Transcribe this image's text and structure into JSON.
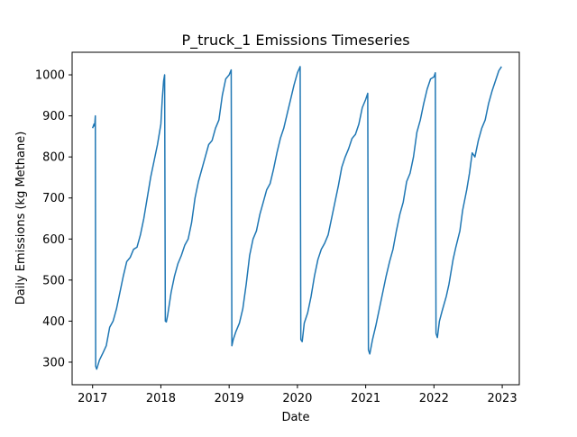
{
  "chart_data": {
    "type": "line",
    "title": "P_truck_1 Emissions Timeseries",
    "xlabel": "Date",
    "ylabel": "Daily Emissions (kg Methane)",
    "xlim": [
      2016.7,
      2023.25
    ],
    "ylim": [
      245,
      1055
    ],
    "x_ticks": [
      2017,
      2018,
      2019,
      2020,
      2021,
      2022,
      2023
    ],
    "x_tick_labels": [
      "2017",
      "2018",
      "2019",
      "2020",
      "2021",
      "2022",
      "2023"
    ],
    "y_ticks": [
      300,
      400,
      500,
      600,
      700,
      800,
      900,
      1000
    ],
    "y_tick_labels": [
      "300",
      "400",
      "500",
      "600",
      "700",
      "800",
      "900",
      "1000"
    ],
    "grid": false,
    "series": [
      {
        "name": "P_truck_1",
        "color": "#1f77b4",
        "points": [
          [
            2017.0,
            870
          ],
          [
            2017.02,
            880
          ],
          [
            2017.03,
            875
          ],
          [
            2017.04,
            900
          ],
          [
            2017.045,
            290
          ],
          [
            2017.06,
            283
          ],
          [
            2017.1,
            305
          ],
          [
            2017.15,
            322
          ],
          [
            2017.2,
            340
          ],
          [
            2017.25,
            385
          ],
          [
            2017.3,
            400
          ],
          [
            2017.35,
            430
          ],
          [
            2017.4,
            470
          ],
          [
            2017.45,
            510
          ],
          [
            2017.5,
            545
          ],
          [
            2017.55,
            555
          ],
          [
            2017.6,
            575
          ],
          [
            2017.65,
            580
          ],
          [
            2017.7,
            610
          ],
          [
            2017.75,
            650
          ],
          [
            2017.8,
            700
          ],
          [
            2017.85,
            750
          ],
          [
            2017.9,
            790
          ],
          [
            2017.95,
            830
          ],
          [
            2018.0,
            880
          ],
          [
            2018.02,
            940
          ],
          [
            2018.04,
            985
          ],
          [
            2018.055,
            1000
          ],
          [
            2018.065,
            400
          ],
          [
            2018.08,
            398
          ],
          [
            2018.1,
            415
          ],
          [
            2018.15,
            470
          ],
          [
            2018.2,
            510
          ],
          [
            2018.25,
            540
          ],
          [
            2018.3,
            560
          ],
          [
            2018.35,
            585
          ],
          [
            2018.4,
            600
          ],
          [
            2018.45,
            640
          ],
          [
            2018.5,
            700
          ],
          [
            2018.55,
            740
          ],
          [
            2018.6,
            770
          ],
          [
            2018.65,
            800
          ],
          [
            2018.7,
            830
          ],
          [
            2018.75,
            840
          ],
          [
            2018.8,
            870
          ],
          [
            2018.85,
            890
          ],
          [
            2018.9,
            950
          ],
          [
            2018.95,
            990
          ],
          [
            2019.0,
            1000
          ],
          [
            2019.03,
            1012
          ],
          [
            2019.04,
            340
          ],
          [
            2019.06,
            355
          ],
          [
            2019.1,
            375
          ],
          [
            2019.15,
            395
          ],
          [
            2019.2,
            430
          ],
          [
            2019.25,
            490
          ],
          [
            2019.3,
            560
          ],
          [
            2019.35,
            600
          ],
          [
            2019.4,
            620
          ],
          [
            2019.45,
            660
          ],
          [
            2019.5,
            690
          ],
          [
            2019.55,
            720
          ],
          [
            2019.6,
            735
          ],
          [
            2019.65,
            770
          ],
          [
            2019.7,
            810
          ],
          [
            2019.75,
            845
          ],
          [
            2019.8,
            870
          ],
          [
            2019.85,
            905
          ],
          [
            2019.9,
            940
          ],
          [
            2019.95,
            975
          ],
          [
            2020.0,
            1005
          ],
          [
            2020.04,
            1020
          ],
          [
            2020.05,
            355
          ],
          [
            2020.07,
            350
          ],
          [
            2020.1,
            395
          ],
          [
            2020.15,
            420
          ],
          [
            2020.2,
            460
          ],
          [
            2020.25,
            510
          ],
          [
            2020.3,
            550
          ],
          [
            2020.35,
            575
          ],
          [
            2020.4,
            590
          ],
          [
            2020.45,
            610
          ],
          [
            2020.5,
            650
          ],
          [
            2020.55,
            690
          ],
          [
            2020.6,
            730
          ],
          [
            2020.65,
            775
          ],
          [
            2020.7,
            800
          ],
          [
            2020.75,
            820
          ],
          [
            2020.8,
            845
          ],
          [
            2020.85,
            855
          ],
          [
            2020.9,
            880
          ],
          [
            2020.95,
            920
          ],
          [
            2021.0,
            940
          ],
          [
            2021.03,
            955
          ],
          [
            2021.04,
            330
          ],
          [
            2021.06,
            320
          ],
          [
            2021.1,
            355
          ],
          [
            2021.15,
            390
          ],
          [
            2021.2,
            430
          ],
          [
            2021.25,
            470
          ],
          [
            2021.3,
            510
          ],
          [
            2021.35,
            545
          ],
          [
            2021.4,
            575
          ],
          [
            2021.45,
            620
          ],
          [
            2021.5,
            660
          ],
          [
            2021.55,
            690
          ],
          [
            2021.6,
            740
          ],
          [
            2021.65,
            760
          ],
          [
            2021.7,
            800
          ],
          [
            2021.75,
            860
          ],
          [
            2021.8,
            890
          ],
          [
            2021.85,
            930
          ],
          [
            2021.9,
            965
          ],
          [
            2021.95,
            990
          ],
          [
            2022.0,
            995
          ],
          [
            2022.02,
            1005
          ],
          [
            2022.03,
            370
          ],
          [
            2022.05,
            360
          ],
          [
            2022.08,
            400
          ],
          [
            2022.12,
            425
          ],
          [
            2022.18,
            460
          ],
          [
            2022.22,
            490
          ],
          [
            2022.28,
            550
          ],
          [
            2022.32,
            580
          ],
          [
            2022.38,
            620
          ],
          [
            2022.42,
            670
          ],
          [
            2022.48,
            720
          ],
          [
            2022.52,
            760
          ],
          [
            2022.56,
            810
          ],
          [
            2022.6,
            800
          ],
          [
            2022.65,
            840
          ],
          [
            2022.7,
            870
          ],
          [
            2022.75,
            890
          ],
          [
            2022.8,
            930
          ],
          [
            2022.85,
            960
          ],
          [
            2022.9,
            985
          ],
          [
            2022.95,
            1010
          ],
          [
            2022.99,
            1020
          ]
        ]
      }
    ]
  }
}
